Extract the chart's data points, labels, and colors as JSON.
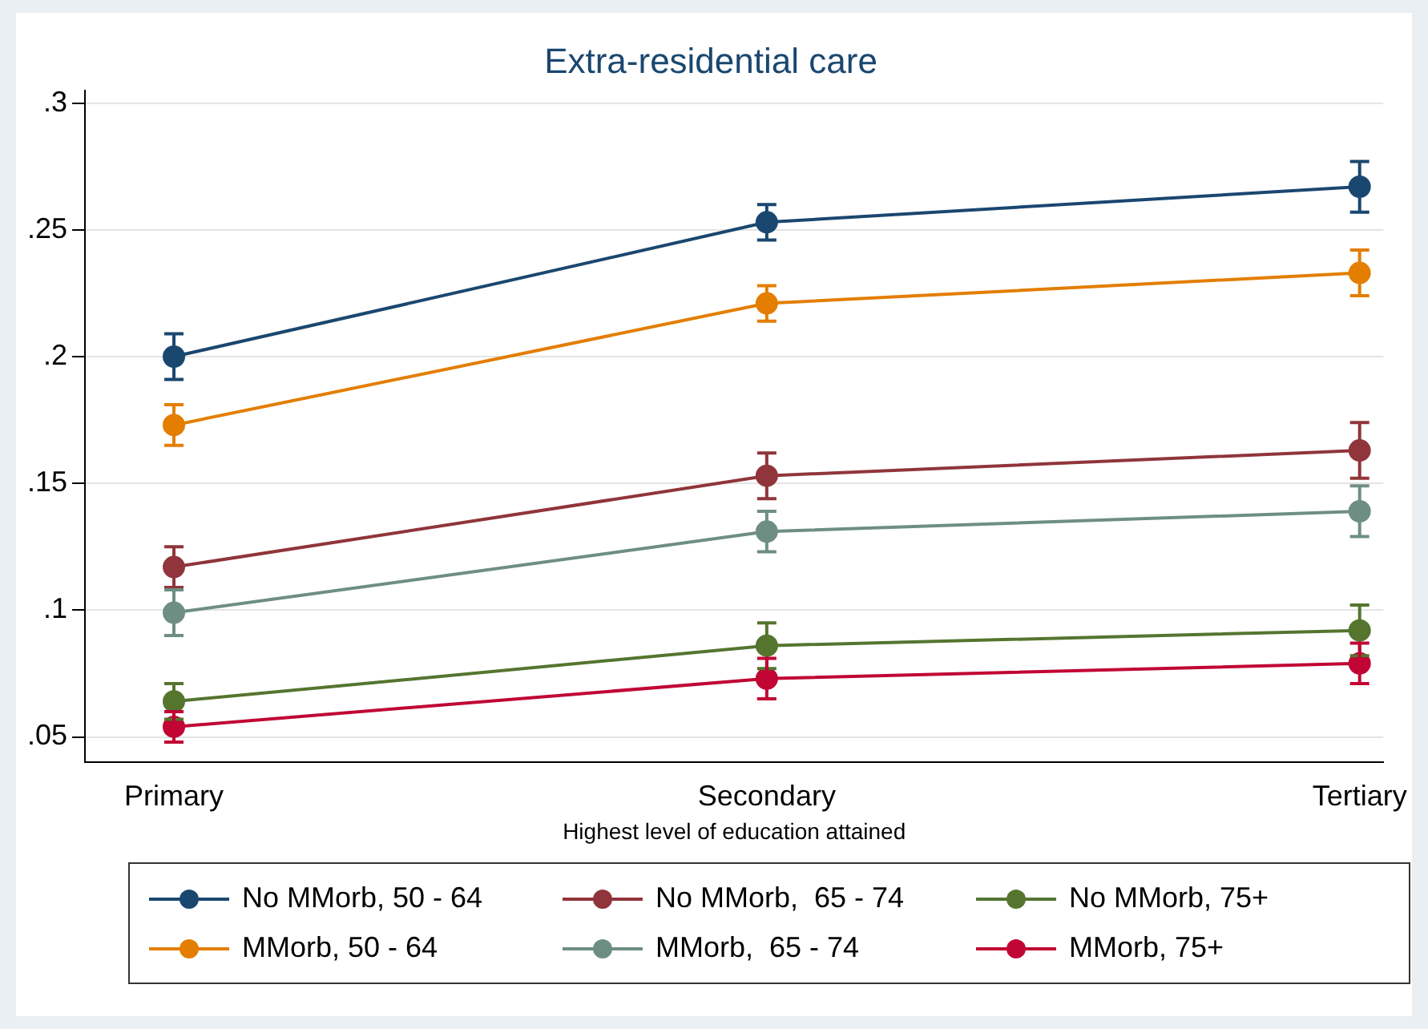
{
  "chart_data": {
    "type": "line",
    "title": "Extra-residential care",
    "xlabel": "Highest level of education attained",
    "categories": [
      "Primary",
      "Secondary",
      "Tertiary"
    ],
    "ylim": [
      0.04,
      0.305
    ],
    "yticks": [
      {
        "value": 0.05,
        "label": ".05"
      },
      {
        "value": 0.1,
        "label": ".1"
      },
      {
        "value": 0.15,
        "label": ".15"
      },
      {
        "value": 0.2,
        "label": ".2"
      },
      {
        "value": 0.25,
        "label": ".25"
      },
      {
        "value": 0.3,
        "label": ".3"
      }
    ],
    "grid": "y",
    "legend": "bottom",
    "marker": "circle",
    "line_style": "solid",
    "series": [
      {
        "name": "No MMorb, 50 - 64",
        "color": "#1a476f",
        "values": [
          0.2,
          0.253,
          0.267
        ],
        "errors": [
          0.009,
          0.007,
          0.01
        ]
      },
      {
        "name": "No MMorb,  65 - 74",
        "color": "#90353b",
        "values": [
          0.117,
          0.153,
          0.163
        ],
        "errors": [
          0.008,
          0.009,
          0.011
        ]
      },
      {
        "name": "No MMorb, 75+",
        "color": "#55752f",
        "values": [
          0.064,
          0.086,
          0.092
        ],
        "errors": [
          0.007,
          0.009,
          0.01
        ]
      },
      {
        "name": "MMorb, 50 - 64",
        "color": "#e37e00",
        "values": [
          0.173,
          0.221,
          0.233
        ],
        "errors": [
          0.008,
          0.007,
          0.009
        ]
      },
      {
        "name": "MMorb,  65 - 74",
        "color": "#6e8e84",
        "values": [
          0.099,
          0.131,
          0.139
        ],
        "errors": [
          0.009,
          0.008,
          0.01
        ]
      },
      {
        "name": "MMorb, 75+",
        "color": "#c10534",
        "values": [
          0.054,
          0.073,
          0.079
        ],
        "errors": [
          0.006,
          0.008,
          0.008
        ]
      }
    ]
  }
}
